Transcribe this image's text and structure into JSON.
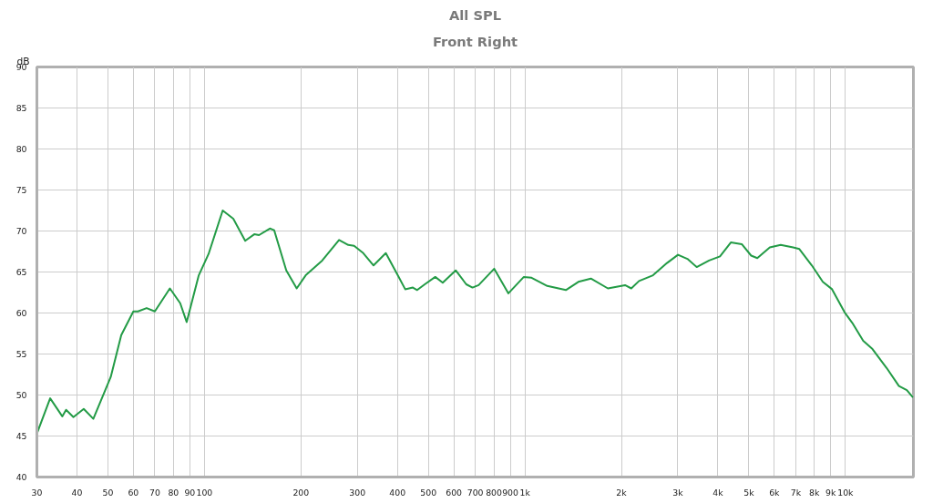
{
  "chart_data": {
    "type": "line",
    "title": "All SPL",
    "subtitle": "Front Right",
    "ylabel": "dB",
    "x": [
      30,
      33,
      36,
      37,
      39,
      42,
      45,
      51,
      55,
      60,
      62,
      66,
      70,
      78,
      84,
      88,
      96,
      103,
      114,
      123,
      134,
      143,
      148,
      160,
      165,
      180,
      194,
      207,
      233,
      263,
      281,
      293,
      313,
      337,
      368,
      401,
      423,
      447,
      461,
      487,
      525,
      554,
      608,
      656,
      686,
      717,
      802,
      888,
      992,
      1049,
      1174,
      1342,
      1468,
      1606,
      1815,
      2053,
      2147,
      2270,
      2510,
      2776,
      3003,
      3213,
      3435,
      3755,
      4061,
      4390,
      4749,
      5080,
      5310,
      5808,
      6281,
      6870,
      7184,
      7857,
      8499,
      9085,
      9936,
      10506,
      11364,
      12148,
      13445,
      14690,
      15545,
      16250
    ],
    "series": [
      {
        "color": "#239b46",
        "values": [
          45.3,
          49.6,
          47.4,
          48.2,
          47.3,
          48.3,
          47.1,
          52.2,
          57.3,
          60.2,
          60.2,
          60.6,
          60.2,
          63.0,
          61.2,
          58.9,
          64.6,
          67.2,
          72.5,
          71.5,
          68.8,
          69.6,
          69.5,
          70.3,
          70.1,
          65.2,
          63.0,
          64.6,
          66.4,
          68.9,
          68.3,
          68.2,
          67.3,
          65.8,
          67.3,
          64.6,
          62.9,
          63.1,
          62.8,
          63.5,
          64.4,
          63.7,
          65.2,
          63.5,
          63.1,
          63.4,
          65.4,
          62.4,
          64.4,
          64.3,
          63.3,
          62.8,
          63.8,
          64.2,
          63.0,
          63.4,
          63.0,
          63.9,
          64.6,
          66.1,
          67.1,
          66.6,
          65.6,
          66.4,
          66.9,
          68.6,
          68.4,
          67.0,
          66.7,
          68.0,
          68.3,
          68.0,
          67.8,
          65.8,
          63.8,
          62.9,
          60.1,
          58.8,
          56.6,
          55.6,
          53.3,
          51.1,
          50.6,
          49.7
        ]
      }
    ],
    "log": "x",
    "xlim": [
      30,
      16300
    ],
    "ylim": [
      40,
      90
    ],
    "xticks": [
      30,
      40,
      50,
      60,
      70,
      80,
      90,
      100,
      200,
      300,
      400,
      500,
      600,
      700,
      800,
      900,
      {
        "value": 1000,
        "label": "1k"
      },
      {
        "value": 2000,
        "label": "2k"
      },
      {
        "value": 3000,
        "label": "3k"
      },
      {
        "value": 4000,
        "label": "4k"
      },
      {
        "value": 5000,
        "label": "5k"
      },
      {
        "value": 6000,
        "label": "6k"
      },
      {
        "value": 7000,
        "label": "7k"
      },
      {
        "value": 8000,
        "label": "8k"
      },
      {
        "value": 9000,
        "label": "9k"
      },
      {
        "value": 10000,
        "label": "10k"
      }
    ],
    "yticks": [
      40,
      45,
      50,
      55,
      60,
      65,
      70,
      75,
      80,
      85,
      90
    ],
    "grid": true,
    "marker": "none",
    "line_style": "solid"
  }
}
